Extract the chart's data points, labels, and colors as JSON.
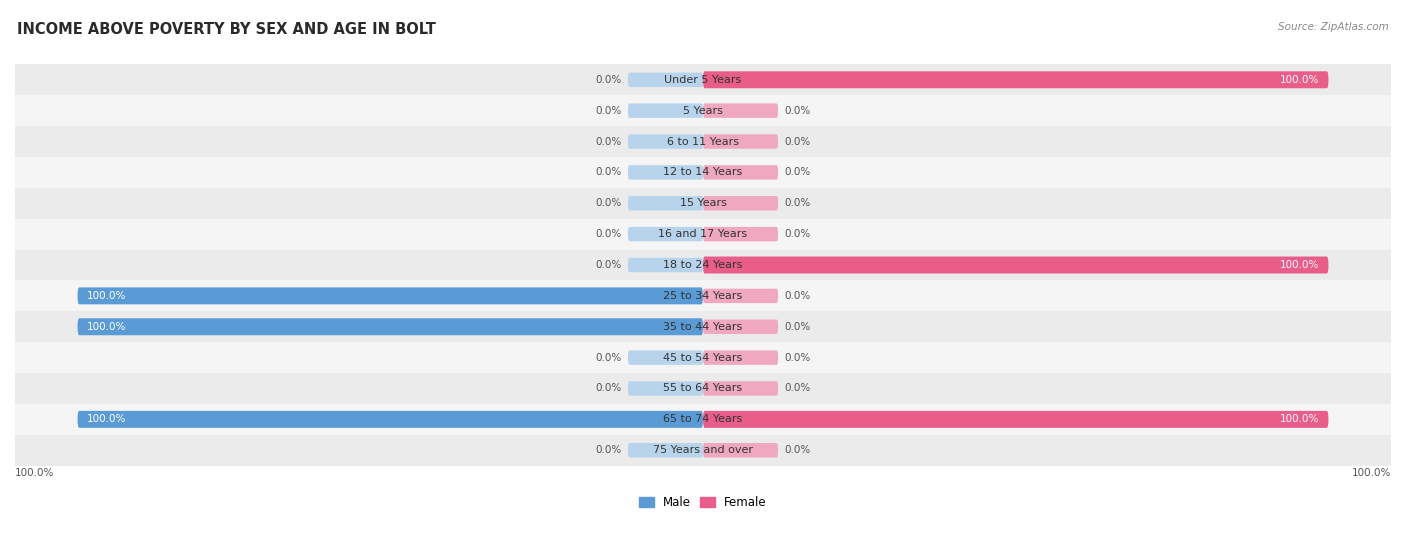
{
  "title": "INCOME ABOVE POVERTY BY SEX AND AGE IN BOLT",
  "source": "Source: ZipAtlas.com",
  "categories": [
    "Under 5 Years",
    "5 Years",
    "6 to 11 Years",
    "12 to 14 Years",
    "15 Years",
    "16 and 17 Years",
    "18 to 24 Years",
    "25 to 34 Years",
    "35 to 44 Years",
    "45 to 54 Years",
    "55 to 64 Years",
    "65 to 74 Years",
    "75 Years and over"
  ],
  "male_values": [
    0.0,
    0.0,
    0.0,
    0.0,
    0.0,
    0.0,
    0.0,
    100.0,
    100.0,
    0.0,
    0.0,
    100.0,
    0.0
  ],
  "female_values": [
    100.0,
    0.0,
    0.0,
    0.0,
    0.0,
    0.0,
    100.0,
    0.0,
    0.0,
    0.0,
    0.0,
    100.0,
    0.0
  ],
  "male_color_full": "#5b9bd5",
  "male_color_empty": "#b8d4ec",
  "female_color_full": "#e85d8a",
  "female_color_empty": "#f0a8c0",
  "row_color_odd": "#ebebeb",
  "row_color_even": "#f5f5f5",
  "title_fontsize": 10.5,
  "label_fontsize": 8,
  "value_fontsize": 7.5,
  "bar_height": 0.55,
  "empty_bar_width": 12,
  "figsize": [
    14.06,
    5.59
  ],
  "dpi": 100
}
